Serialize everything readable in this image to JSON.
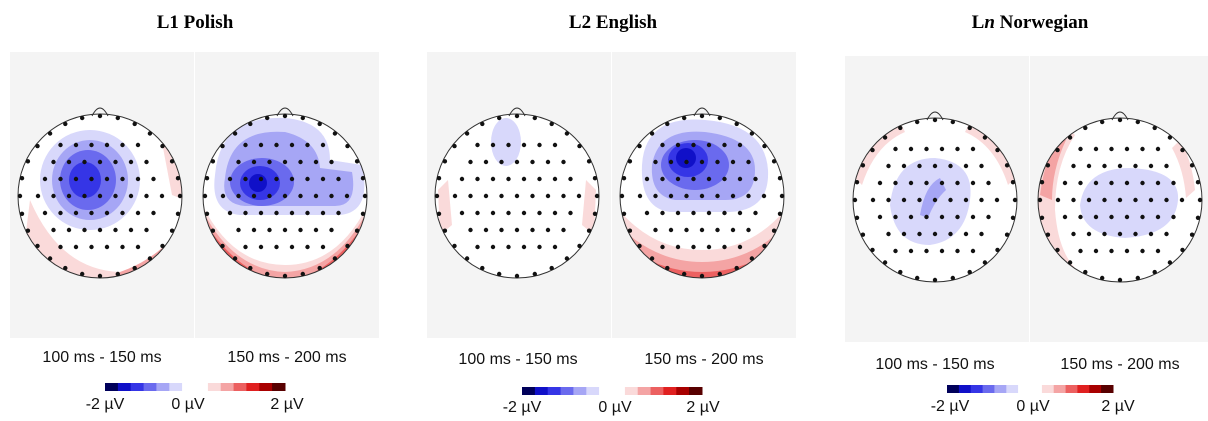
{
  "panels": [
    {
      "title": "L1 Polish",
      "t1": "100 ms - 150 ms",
      "t2": "150 ms - 200 ms"
    },
    {
      "title": "L2 English",
      "t1": "100 ms - 150 ms",
      "t2": "150 ms - 200 ms"
    },
    {
      "title": "Ln Norwegian",
      "t1": "100 ms - 150 ms",
      "t2": "150 ms - 200 ms"
    }
  ],
  "colorbar": {
    "min": "-2 µV",
    "mid": "0 µV",
    "max": "2 µV"
  },
  "colors": {
    "negative": [
      "#00005a",
      "#1010c8",
      "#3535e6",
      "#6a6aee",
      "#a6a6f5",
      "#d8d8fb"
    ],
    "positive": [
      "#fadada",
      "#f4a4a4",
      "#ec6060",
      "#e02020",
      "#a80000",
      "#580000"
    ],
    "panel_bg": "#f4f4f4"
  }
}
